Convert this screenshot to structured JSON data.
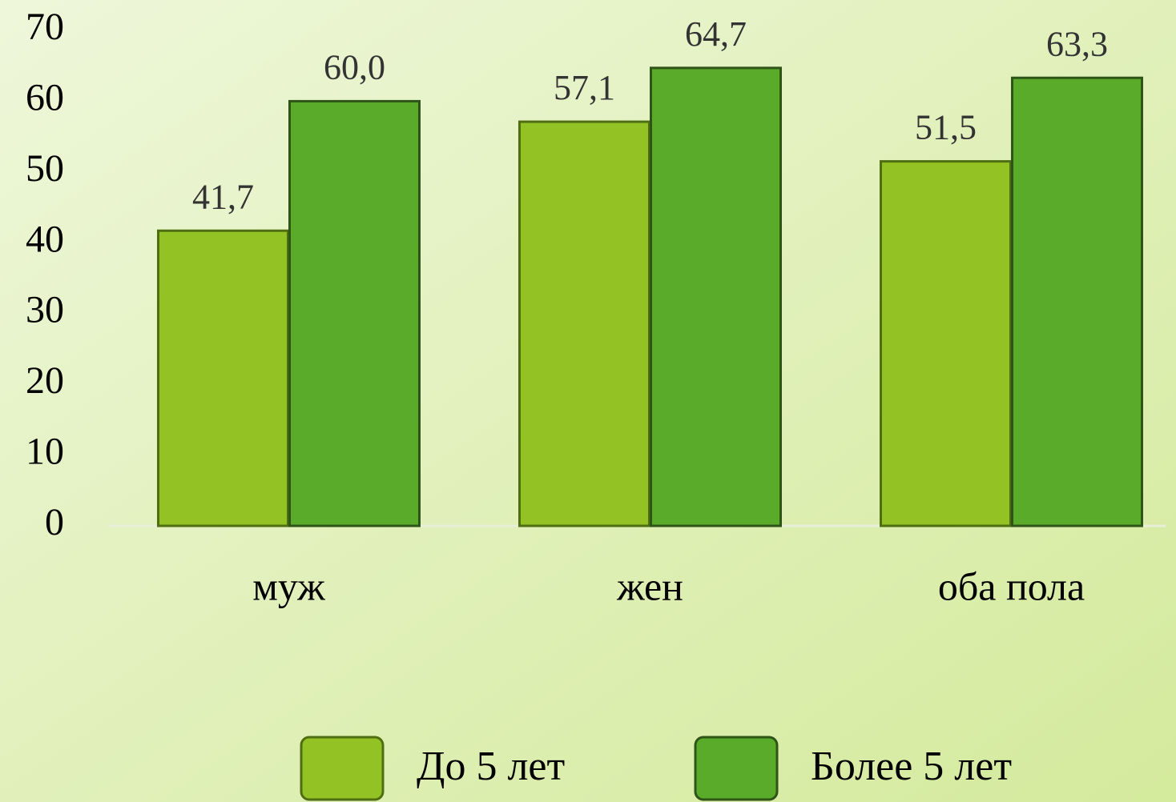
{
  "chart_data": {
    "type": "bar",
    "categories": [
      "муж",
      "жен",
      "оба пола"
    ],
    "series": [
      {
        "name": "До 5 лет",
        "color": "#93c225",
        "values": [
          41.7,
          57.1,
          51.5
        ],
        "value_labels": [
          "41,7",
          "57,1",
          "51,5"
        ]
      },
      {
        "name": "Более 5 лет",
        "color": "#5aab2a",
        "values": [
          60.0,
          64.7,
          63.3
        ],
        "value_labels": [
          "60,0",
          "64,7",
          "63,3"
        ]
      }
    ],
    "ylim": [
      0,
      70
    ],
    "yticks": [
      0,
      10,
      20,
      30,
      40,
      50,
      60,
      70
    ],
    "grid": false,
    "legend": "bottom"
  }
}
